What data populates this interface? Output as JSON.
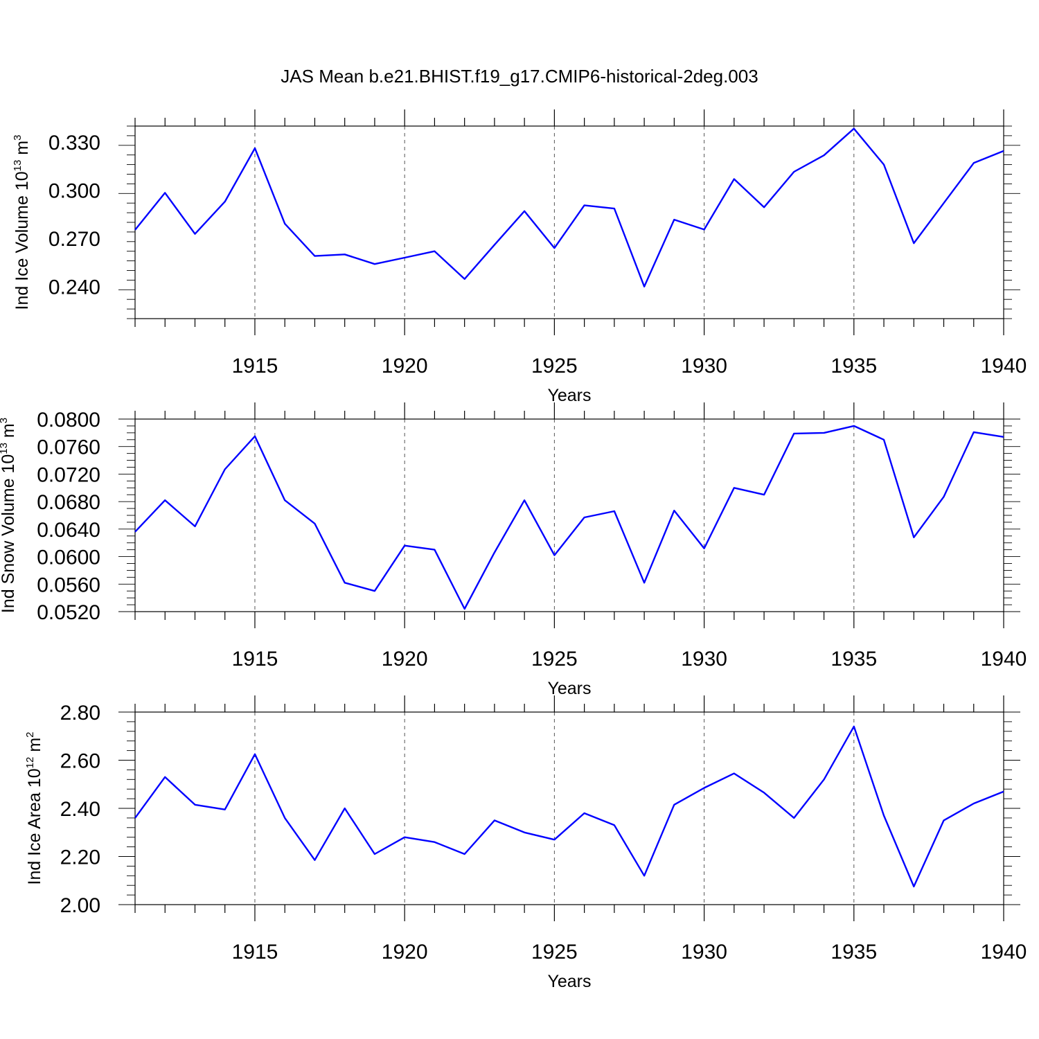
{
  "title": "JAS Mean b.e21.BHIST.f19_g17.CMIP6-historical-2deg.003",
  "colors": {
    "line": "#0000ff",
    "grid": "#555555",
    "axis": "#000000"
  },
  "chart_data": [
    {
      "type": "line",
      "xlabel": "Years",
      "ylabel": {
        "base": "Ind Ice Volume 10",
        "exp": "13",
        "unit": " m",
        "unit_exp": "3"
      },
      "xlim": [
        1911,
        1940
      ],
      "ylim": [
        0.22,
        0.34
      ],
      "xticks": [
        "1915",
        "1920",
        "1925",
        "1930",
        "1935",
        "1940"
      ],
      "yticks": [
        "0.240",
        "0.270",
        "0.300",
        "0.330"
      ],
      "grid": "vertical-dashed",
      "x": [
        1911,
        1912,
        1913,
        1914,
        1915,
        1916,
        1917,
        1918,
        1919,
        1920,
        1921,
        1922,
        1923,
        1924,
        1925,
        1926,
        1927,
        1928,
        1929,
        1930,
        1931,
        1932,
        1933,
        1934,
        1935,
        1936,
        1937,
        1938,
        1939,
        1940
      ],
      "series": [
        {
          "values": [
            0.2753,
            0.2984,
            0.2728,
            0.2929,
            0.3262,
            0.2792,
            0.259,
            0.26,
            0.254,
            0.258,
            0.262,
            0.2447,
            0.266,
            0.287,
            0.264,
            0.2906,
            0.2886,
            0.24,
            0.2817,
            0.2755,
            0.307,
            0.2894,
            0.3115,
            0.3218,
            0.3384,
            0.316,
            0.267,
            0.292,
            0.317,
            0.3245
          ]
        }
      ]
    },
    {
      "type": "line",
      "xlabel": "Years",
      "ylabel": {
        "base": "Ind Snow Volume 10",
        "exp": "13",
        "unit": " m",
        "unit_exp": "3"
      },
      "xlim": [
        1911,
        1940
      ],
      "ylim": [
        0.052,
        0.08
      ],
      "xticks": [
        "1915",
        "1920",
        "1925",
        "1930",
        "1935",
        "1940"
      ],
      "yticks": [
        "0.0520",
        "0.0560",
        "0.0600",
        "0.0640",
        "0.0680",
        "0.0720",
        "0.0760",
        "0.0800"
      ],
      "grid": "vertical-dashed",
      "x": [
        1911,
        1912,
        1913,
        1914,
        1915,
        1916,
        1917,
        1918,
        1919,
        1920,
        1921,
        1922,
        1923,
        1924,
        1925,
        1926,
        1927,
        1928,
        1929,
        1930,
        1931,
        1932,
        1933,
        1934,
        1935,
        1936,
        1937,
        1938,
        1939,
        1940
      ],
      "series": [
        {
          "values": [
            0.0636,
            0.0682,
            0.0644,
            0.0727,
            0.0775,
            0.0682,
            0.0648,
            0.0562,
            0.055,
            0.0616,
            0.061,
            0.0524,
            0.0606,
            0.0682,
            0.0602,
            0.0657,
            0.0666,
            0.0562,
            0.0667,
            0.0612,
            0.07,
            0.069,
            0.0779,
            0.078,
            0.079,
            0.077,
            0.0628,
            0.0687,
            0.0781,
            0.0774
          ]
        }
      ]
    },
    {
      "type": "line",
      "xlabel": "Years",
      "ylabel": {
        "base": "Ind Ice Area 10",
        "exp": "12",
        "unit": " m",
        "unit_exp": "2"
      },
      "xlim": [
        1911,
        1940
      ],
      "ylim": [
        2.0,
        2.8
      ],
      "xticks": [
        "1915",
        "1920",
        "1925",
        "1930",
        "1935",
        "1940"
      ],
      "yticks": [
        "2.00",
        "2.20",
        "2.40",
        "2.60",
        "2.80"
      ],
      "grid": "vertical-dashed",
      "x": [
        1911,
        1912,
        1913,
        1914,
        1915,
        1916,
        1917,
        1918,
        1919,
        1920,
        1921,
        1922,
        1923,
        1924,
        1925,
        1926,
        1927,
        1928,
        1929,
        1930,
        1931,
        1932,
        1933,
        1934,
        1935,
        1936,
        1937,
        1938,
        1939,
        1940
      ],
      "series": [
        {
          "values": [
            2.36,
            2.53,
            2.415,
            2.395,
            2.625,
            2.36,
            2.185,
            2.4,
            2.21,
            2.28,
            2.26,
            2.21,
            2.35,
            2.3,
            2.27,
            2.38,
            2.33,
            2.12,
            2.415,
            2.485,
            2.545,
            2.465,
            2.36,
            2.52,
            2.74,
            2.37,
            2.075,
            2.35,
            2.42,
            2.47
          ]
        }
      ]
    }
  ]
}
